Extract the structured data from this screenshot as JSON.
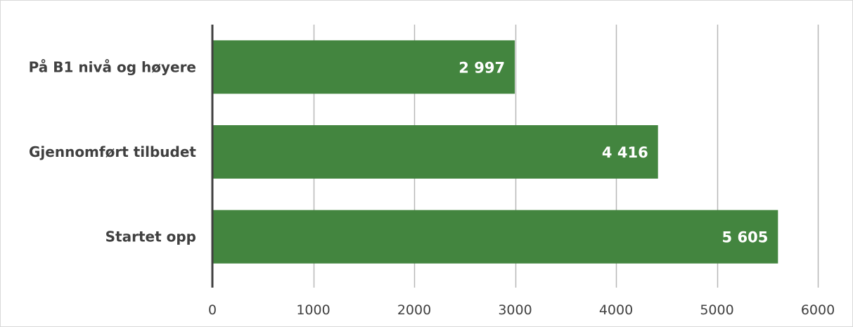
{
  "chart_data": {
    "type": "bar",
    "orientation": "horizontal",
    "categories": [
      "På B1 nivå og høyere",
      "Gjennomført tilbudet",
      "Startet opp"
    ],
    "values": [
      2997,
      4416,
      5605
    ],
    "data_labels": [
      "2 997",
      "4 416",
      "5 605"
    ],
    "xlim": [
      0,
      6000
    ],
    "x_ticks": [
      0,
      1000,
      2000,
      3000,
      4000,
      5000,
      6000
    ],
    "x_tick_labels": [
      "0",
      "1000",
      "2000",
      "3000",
      "4000",
      "5000",
      "6000"
    ],
    "bar_color": "#43853f",
    "grid": true,
    "legend": "none"
  }
}
